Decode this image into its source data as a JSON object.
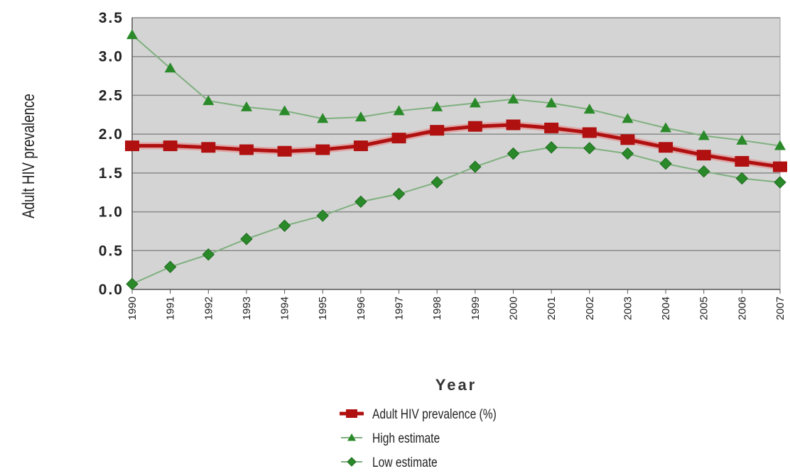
{
  "chart_data": {
    "type": "line",
    "title": "",
    "xlabel": "Year",
    "ylabel": "Adult HIV prevalence",
    "ylim": [
      0,
      3.5
    ],
    "yticks": [
      "0.0",
      "0.5",
      "1.0",
      "1.5",
      "2.0",
      "2.5",
      "3.0",
      "3.5"
    ],
    "categories": [
      "1990",
      "1991",
      "1992",
      "1993",
      "1994",
      "1995",
      "1996",
      "1997",
      "1998",
      "1999",
      "2000",
      "2001",
      "2002",
      "2003",
      "2004",
      "2005",
      "2006",
      "2007"
    ],
    "grid": true,
    "legend_position": "bottom",
    "series": [
      {
        "name": "Adult HIV prevalence (%)",
        "color": "#b01010",
        "marker": "square",
        "values": [
          1.85,
          1.85,
          1.83,
          1.8,
          1.78,
          1.8,
          1.85,
          1.95,
          2.05,
          2.1,
          2.12,
          2.08,
          2.02,
          1.93,
          1.83,
          1.73,
          1.65,
          1.58
        ]
      },
      {
        "name": "High estimate",
        "color": "#2a8a2a",
        "marker": "triangle",
        "values": [
          3.28,
          2.85,
          2.43,
          2.35,
          2.3,
          2.2,
          2.22,
          2.3,
          2.35,
          2.4,
          2.45,
          2.4,
          2.32,
          2.2,
          2.08,
          1.98,
          1.92,
          1.85
        ]
      },
      {
        "name": "Low estimate",
        "color": "#2a8a2a",
        "marker": "diamond",
        "values": [
          0.07,
          0.29,
          0.45,
          0.65,
          0.82,
          0.95,
          1.13,
          1.23,
          1.38,
          1.58,
          1.75,
          1.83,
          1.82,
          1.75,
          1.62,
          1.52,
          1.43,
          1.38
        ]
      }
    ]
  },
  "colors": {
    "plot_background": "#d4d4d4",
    "gridline": "#8a8a8a",
    "prevalence": "#b01010",
    "estimate": "#2a8a2a"
  }
}
